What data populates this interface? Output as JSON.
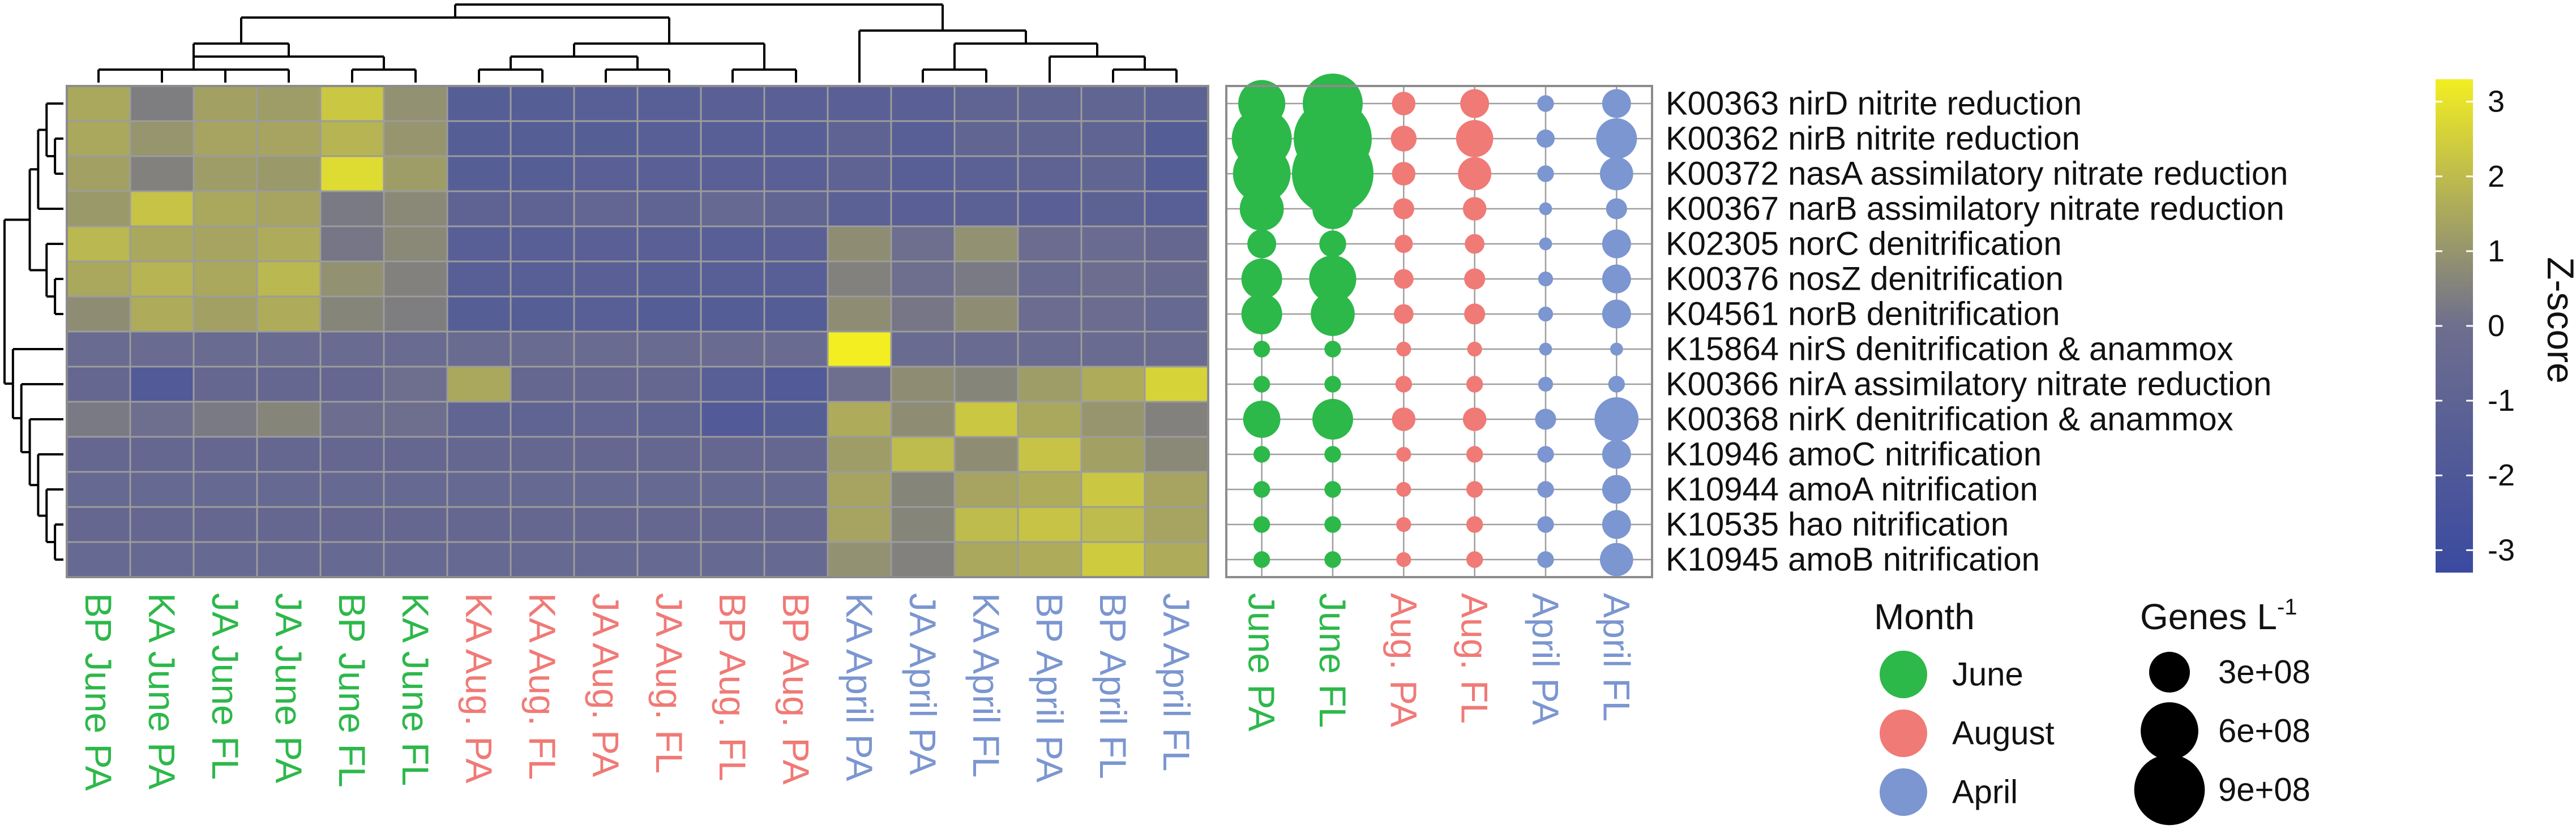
{
  "chart_data": [
    {
      "type": "heatmap",
      "title": "",
      "colorbar": {
        "label": "Z-score",
        "ticks": [
          3,
          2,
          1,
          0,
          -1,
          -2,
          -3
        ],
        "range": [
          -3.3,
          3.3
        ],
        "colors": [
          "#3a4aa0",
          "#6e6e8e",
          "#f2ee22"
        ]
      },
      "columns": [
        {
          "label": "BP June PA",
          "month": "June"
        },
        {
          "label": "KA June PA",
          "month": "June"
        },
        {
          "label": "JA June FL",
          "month": "June"
        },
        {
          "label": "JA June PA",
          "month": "June"
        },
        {
          "label": "BP June FL",
          "month": "June"
        },
        {
          "label": "KA June FL",
          "month": "June"
        },
        {
          "label": "KA Aug. PA",
          "month": "August"
        },
        {
          "label": "KA Aug. FL",
          "month": "August"
        },
        {
          "label": "JA Aug. PA",
          "month": "August"
        },
        {
          "label": "JA Aug. FL",
          "month": "August"
        },
        {
          "label": "BP Aug. FL",
          "month": "August"
        },
        {
          "label": "BP Aug. PA",
          "month": "August"
        },
        {
          "label": "KA April PA",
          "month": "April"
        },
        {
          "label": "JA April PA",
          "month": "April"
        },
        {
          "label": "KA April FL",
          "month": "April"
        },
        {
          "label": "BP April PA",
          "month": "April"
        },
        {
          "label": "BP April FL",
          "month": "April"
        },
        {
          "label": "JA April FL",
          "month": "April"
        }
      ],
      "rows": [
        "K00363 nirD nitrite reduction",
        "K00362 nirB nitrite reduction",
        "K00372 nasA assimilatory nitrate reduction",
        "K00367 narB assimilatory nitrate reduction",
        "K02305 norC denitrification",
        "K00376 nosZ denitrification",
        "K04561 norB denitrification",
        "K15864 nirS denitrification & anammox",
        "K00366 nirA assimilatory nitrate reduction",
        "K00368 nirK denitrification & anammox",
        "K10946 amoC nitrification",
        "K10944 amoA nitrification",
        "K10535 hao nitrification",
        "K10945 amoB nitrification"
      ],
      "values": [
        [
          1.5,
          0.4,
          1.3,
          1.2,
          2.3,
          0.9,
          -1.5,
          -1.5,
          -1.4,
          -1.4,
          -1.3,
          -1.3,
          -1.3,
          -1.3,
          -0.9,
          -0.8,
          -0.8,
          -1.1
        ],
        [
          1.5,
          1.0,
          1.4,
          1.4,
          1.8,
          1.0,
          -1.5,
          -1.5,
          -1.5,
          -1.4,
          -1.4,
          -1.4,
          -1.0,
          -1.4,
          -0.8,
          -0.8,
          -0.9,
          -1.6
        ],
        [
          1.3,
          0.5,
          1.2,
          1.1,
          2.8,
          1.2,
          -1.5,
          -1.5,
          -1.3,
          -1.3,
          -1.3,
          -1.3,
          -1.0,
          -1.4,
          -1.2,
          -1.0,
          -0.8,
          -1.6
        ],
        [
          1.1,
          2.2,
          1.5,
          1.4,
          0.3,
          0.7,
          -1.0,
          -1.0,
          -0.7,
          -0.9,
          -0.5,
          -0.8,
          -1.2,
          -1.3,
          -1.2,
          -1.3,
          -1.1,
          -1.4
        ],
        [
          1.9,
          1.5,
          1.4,
          1.6,
          0.2,
          0.7,
          -1.4,
          -1.4,
          -1.3,
          -1.3,
          -1.4,
          -1.3,
          0.8,
          0.0,
          0.9,
          -0.2,
          -0.3,
          -0.6
        ],
        [
          1.5,
          1.8,
          1.5,
          1.9,
          0.9,
          0.5,
          -1.4,
          -1.4,
          -1.3,
          -1.4,
          -1.4,
          -1.4,
          0.5,
          0.0,
          0.3,
          -0.3,
          -0.1,
          -0.4
        ],
        [
          0.8,
          1.6,
          1.3,
          1.6,
          0.6,
          0.4,
          -1.5,
          -1.5,
          -1.4,
          -1.6,
          -1.6,
          -1.6,
          0.8,
          0.2,
          0.8,
          -0.2,
          -0.2,
          -0.5
        ],
        [
          -0.3,
          -0.3,
          -0.3,
          -0.3,
          -0.3,
          -0.3,
          -0.3,
          -0.3,
          -0.3,
          -0.3,
          -0.3,
          -0.3,
          3.3,
          -0.3,
          -0.3,
          -0.3,
          -0.3,
          -0.3
        ],
        [
          -0.6,
          -1.8,
          -0.6,
          -0.6,
          -0.6,
          0.0,
          1.5,
          -0.6,
          -0.6,
          -0.6,
          -1.4,
          -1.8,
          0.0,
          0.8,
          0.6,
          1.2,
          1.6,
          2.6
        ],
        [
          0.3,
          0.0,
          0.3,
          0.6,
          -0.1,
          0.0,
          -0.8,
          -0.9,
          -0.7,
          -0.9,
          -1.8,
          -1.5,
          1.6,
          0.8,
          2.3,
          1.5,
          1.0,
          0.5
        ],
        [
          -0.6,
          -0.6,
          -0.6,
          -0.6,
          -0.6,
          -0.6,
          -0.6,
          -0.6,
          -0.6,
          -0.6,
          -0.6,
          -0.6,
          1.2,
          2.0,
          0.8,
          2.2,
          1.3,
          0.7
        ],
        [
          -0.5,
          -0.5,
          -0.5,
          -0.5,
          -0.5,
          -0.5,
          -0.5,
          -0.5,
          -0.5,
          -0.5,
          -0.5,
          -0.5,
          1.4,
          0.6,
          1.4,
          1.6,
          2.3,
          1.4
        ],
        [
          -0.6,
          -0.6,
          -0.6,
          -0.6,
          -0.6,
          -0.6,
          -0.6,
          -0.6,
          -0.6,
          -0.6,
          -0.6,
          -0.6,
          1.4,
          0.6,
          2.0,
          2.2,
          2.0,
          1.4
        ],
        [
          -0.5,
          -0.5,
          -0.5,
          -0.5,
          -0.5,
          -0.5,
          -0.5,
          -0.5,
          -0.5,
          -0.5,
          -0.5,
          -0.5,
          0.9,
          0.5,
          1.5,
          1.6,
          2.4,
          1.6
        ]
      ],
      "row_dendrogram": true,
      "column_dendrogram": true
    },
    {
      "type": "scatter",
      "subtype": "dot-plot",
      "title": "",
      "columns": [
        {
          "label": "June PA",
          "month": "June"
        },
        {
          "label": "June FL",
          "month": "June"
        },
        {
          "label": "Aug. PA",
          "month": "August"
        },
        {
          "label": "Aug. FL",
          "month": "August"
        },
        {
          "label": "April PA",
          "month": "April"
        },
        {
          "label": "April FL",
          "month": "April"
        }
      ],
      "rows": [
        "K00363 nirD nitrite reduction",
        "K00362 nirB nitrite reduction",
        "K00372 nasA assimilatory nitrate reduction",
        "K00367 narB assimilatory nitrate reduction",
        "K02305 norC denitrification",
        "K00376 nosZ denitrification",
        "K04561 norB denitrification",
        "K15864 nirS denitrification & anammox",
        "K00366 nirA assimilatory nitrate reduction",
        "K00368 nirK denitrification & anammox",
        "K10946 amoC nitrification",
        "K10944 amoA nitrification",
        "K10535 hao nitrification",
        "K10945 amoB nitrification"
      ],
      "genes_per_L": [
        [
          400000000.0,
          650000000.0,
          100000000.0,
          150000000.0,
          50000000.0,
          150000000.0
        ],
        [
          650000000.0,
          1100000000.0,
          120000000.0,
          250000000.0,
          60000000.0,
          300000000.0
        ],
        [
          600000000.0,
          1200000000.0,
          100000000.0,
          200000000.0,
          50000000.0,
          200000000.0
        ],
        [
          350000000.0,
          300000000.0,
          80000000.0,
          100000000.0,
          30000000.0,
          80000000.0
        ],
        [
          150000000.0,
          130000000.0,
          60000000.0,
          70000000.0,
          30000000.0,
          150000000.0
        ],
        [
          300000000.0,
          400000000.0,
          70000000.0,
          80000000.0,
          40000000.0,
          150000000.0
        ],
        [
          300000000.0,
          350000000.0,
          70000000.0,
          80000000.0,
          40000000.0,
          150000000.0
        ],
        [
          50000000.0,
          50000000.0,
          40000000.0,
          40000000.0,
          30000000.0,
          30000000.0
        ],
        [
          50000000.0,
          50000000.0,
          50000000.0,
          50000000.0,
          40000000.0,
          50000000.0
        ],
        [
          250000000.0,
          300000000.0,
          100000000.0,
          100000000.0,
          80000000.0,
          350000000.0
        ],
        [
          50000000.0,
          50000000.0,
          40000000.0,
          50000000.0,
          50000000.0,
          150000000.0
        ],
        [
          50000000.0,
          50000000.0,
          40000000.0,
          50000000.0,
          50000000.0,
          150000000.0
        ],
        [
          50000000.0,
          50000000.0,
          40000000.0,
          50000000.0,
          50000000.0,
          150000000.0
        ],
        [
          50000000.0,
          50000000.0,
          40000000.0,
          50000000.0,
          50000000.0,
          200000000.0
        ]
      ],
      "size_legend": {
        "title": "Genes L",
        "title_superscript": "-1",
        "entries": [
          {
            "label": "3e+08",
            "value": 300000000.0
          },
          {
            "label": "6e+08",
            "value": 600000000.0
          },
          {
            "label": "9e+08",
            "value": 900000000.0
          }
        ]
      }
    }
  ],
  "legend": {
    "month_title": "Month",
    "months": [
      {
        "label": "June",
        "color": "#2db84a"
      },
      {
        "label": "August",
        "color": "#f07a76"
      },
      {
        "label": "April",
        "color": "#7b96d0"
      }
    ]
  },
  "colors": {
    "June": "#2db84a",
    "August": "#f07a76",
    "April": "#7b96d0"
  }
}
